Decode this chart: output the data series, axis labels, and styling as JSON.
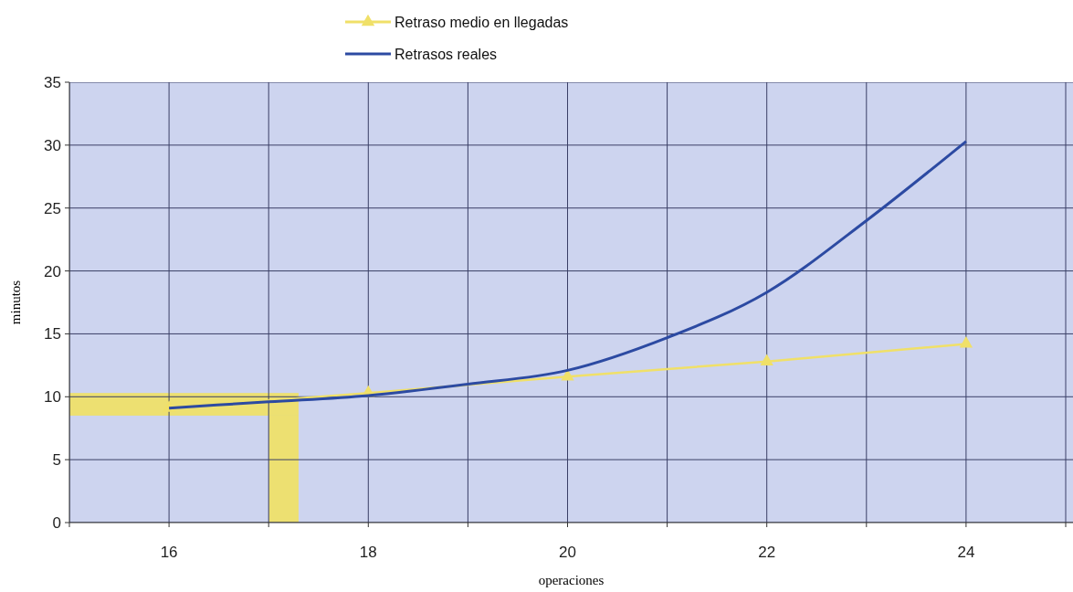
{
  "chart_data": {
    "type": "line",
    "xlabel": "operaciones",
    "ylabel": "minutos",
    "xlim": [
      15,
      25
    ],
    "ylim": [
      0,
      35
    ],
    "xticks": [
      {
        "value": 15,
        "label": null
      },
      16,
      {
        "value": 17,
        "label": null
      },
      18,
      {
        "value": 19,
        "label": null
      },
      20,
      {
        "value": 21,
        "label": null
      },
      22,
      {
        "value": 23,
        "label": null
      },
      24,
      {
        "value": 25,
        "label": null
      }
    ],
    "yticks": [
      0,
      5,
      10,
      15,
      20,
      25,
      30,
      35
    ],
    "grid": true,
    "legend": "top",
    "bands": [
      {
        "axis": "y",
        "from": 8.5,
        "to": 10.3,
        "color": "#f2e25a"
      },
      {
        "axis": "x",
        "from": 17.0,
        "to": 17.3,
        "color": "#f2e25a"
      }
    ],
    "series": [
      {
        "name": "Retraso medio en llegadas",
        "color": "#f0e068",
        "marker": "triangle",
        "x": [
          16,
          18,
          20,
          22,
          24
        ],
        "values": [
          9.1,
          10.3,
          11.6,
          12.8,
          14.2
        ]
      },
      {
        "name": "Retrasos reales",
        "color": "#2c4aa2",
        "marker": "none",
        "x": [
          16,
          17,
          18,
          19,
          20,
          21,
          22,
          23,
          24
        ],
        "values": [
          9.1,
          9.6,
          10.1,
          11.0,
          12.1,
          14.7,
          18.3,
          24.0,
          30.3
        ]
      }
    ]
  }
}
